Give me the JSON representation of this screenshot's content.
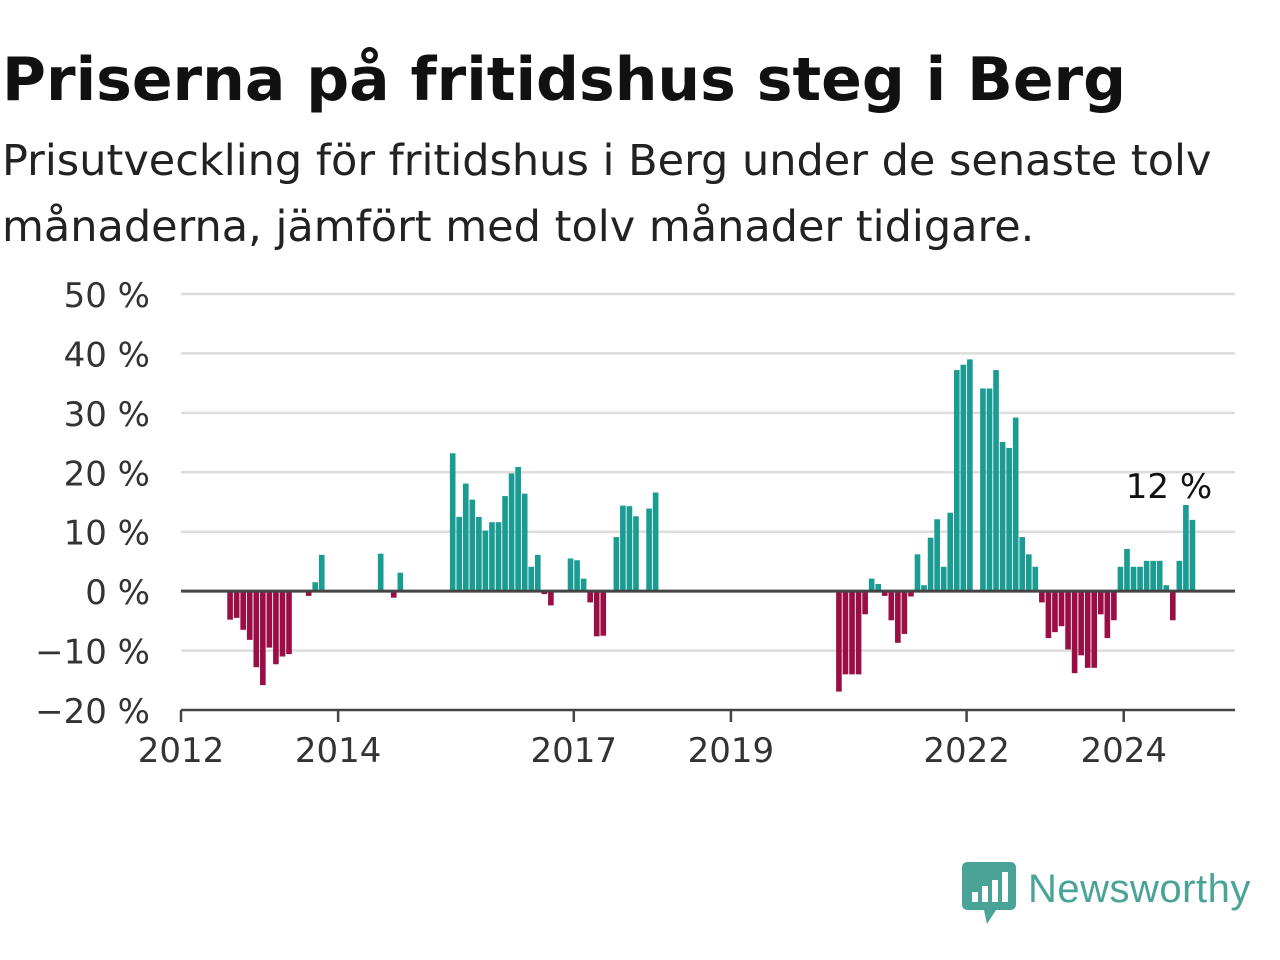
{
  "title": "Priserna på fritidshus steg i Berg",
  "subtitle": "Prisutveckling för fritidshus i Berg under de senaste tolv månaderna, jämfört med tolv månader tidigare.",
  "brand": {
    "name": "Newsworthy",
    "color": "#4aa397",
    "icon": "newsworthy-logo-icon"
  },
  "colors": {
    "positive": "#1a9c93",
    "negative": "#9b0e45",
    "grid": "#dddddd",
    "zero_line": "#444444",
    "axis": "#444444"
  },
  "chart_data": {
    "type": "bar",
    "title": "Priserna på fritidshus steg i Berg",
    "subtitle": "Prisutveckling för fritidshus i Berg under de senaste tolv månaderna, jämfört med tolv månader tidigare.",
    "xlabel": "",
    "ylabel": "",
    "x_unit": "month",
    "xlim": [
      "2012-01",
      "2025-06"
    ],
    "ylim": [
      -20,
      50
    ],
    "y_ticks": [
      50,
      40,
      30,
      20,
      10,
      0,
      -10,
      -20
    ],
    "y_tick_labels": [
      "50 %",
      "40 %",
      "30 %",
      "20 %",
      "10 %",
      "0 %",
      "−10 %",
      "−20 %"
    ],
    "x_ticks": [
      "2012",
      "2014",
      "2017",
      "2019",
      "2022",
      "2024"
    ],
    "grid": true,
    "legend": "none",
    "annotation": {
      "text": "12 %",
      "x": "2024-12",
      "y": 12
    },
    "series": [
      {
        "values": [
          [
            "2012-08",
            -4.8
          ],
          [
            "2012-09",
            -4.5
          ],
          [
            "2012-10",
            -6.5
          ],
          [
            "2012-11",
            -8.2
          ],
          [
            "2012-12",
            -12.8
          ],
          [
            "2013-01",
            -15.8
          ],
          [
            "2013-02",
            -9.5
          ],
          [
            "2013-03",
            -12.3
          ],
          [
            "2013-04",
            -11.0
          ],
          [
            "2013-05",
            -10.6
          ],
          [
            "2013-08",
            -0.8
          ],
          [
            "2013-09",
            1.5
          ],
          [
            "2013-10",
            6.1
          ],
          [
            "2014-07",
            6.3
          ],
          [
            "2014-09",
            -1.1
          ],
          [
            "2014-10",
            3.1
          ],
          [
            "2015-06",
            23.2
          ],
          [
            "2015-07",
            12.5
          ],
          [
            "2015-08",
            18.1
          ],
          [
            "2015-09",
            15.4
          ],
          [
            "2015-10",
            12.5
          ],
          [
            "2015-11",
            10.2
          ],
          [
            "2015-12",
            11.6
          ],
          [
            "2016-01",
            11.6
          ],
          [
            "2016-02",
            16.0
          ],
          [
            "2016-03",
            19.8
          ],
          [
            "2016-04",
            20.9
          ],
          [
            "2016-05",
            16.4
          ],
          [
            "2016-06",
            4.1
          ],
          [
            "2016-07",
            6.1
          ],
          [
            "2016-08",
            -0.5
          ],
          [
            "2016-09",
            -2.4
          ],
          [
            "2016-12",
            5.5
          ],
          [
            "2017-01",
            5.2
          ],
          [
            "2017-02",
            2.1
          ],
          [
            "2017-03",
            -1.9
          ],
          [
            "2017-04",
            -7.6
          ],
          [
            "2017-05",
            -7.5
          ],
          [
            "2017-07",
            9.1
          ],
          [
            "2017-08",
            14.4
          ],
          [
            "2017-09",
            14.3
          ],
          [
            "2017-10",
            12.6
          ],
          [
            "2017-12",
            13.9
          ],
          [
            "2018-01",
            16.6
          ],
          [
            "2020-05",
            -16.9
          ],
          [
            "2020-06",
            -14.0
          ],
          [
            "2020-07",
            -14.0
          ],
          [
            "2020-08",
            -14.0
          ],
          [
            "2020-09",
            -3.9
          ],
          [
            "2020-10",
            2.1
          ],
          [
            "2020-11",
            1.2
          ],
          [
            "2020-12",
            -0.8
          ],
          [
            "2021-01",
            -4.9
          ],
          [
            "2021-02",
            -8.7
          ],
          [
            "2021-03",
            -7.2
          ],
          [
            "2021-04",
            -0.9
          ],
          [
            "2021-05",
            6.2
          ],
          [
            "2021-06",
            1.0
          ],
          [
            "2021-07",
            9.0
          ],
          [
            "2021-08",
            12.1
          ],
          [
            "2021-09",
            4.1
          ],
          [
            "2021-10",
            13.2
          ],
          [
            "2021-11",
            37.2
          ],
          [
            "2021-12",
            38.1
          ],
          [
            "2022-01",
            39.0
          ],
          [
            "2022-03",
            34.1
          ],
          [
            "2022-04",
            34.1
          ],
          [
            "2022-05",
            37.2
          ],
          [
            "2022-06",
            25.1
          ],
          [
            "2022-07",
            24.1
          ],
          [
            "2022-08",
            29.2
          ],
          [
            "2022-09",
            9.1
          ],
          [
            "2022-10",
            6.2
          ],
          [
            "2022-11",
            4.1
          ],
          [
            "2022-12",
            -1.9
          ],
          [
            "2023-01",
            -7.9
          ],
          [
            "2023-02",
            -6.9
          ],
          [
            "2023-03",
            -5.9
          ],
          [
            "2023-04",
            -9.8
          ],
          [
            "2023-05",
            -13.8
          ],
          [
            "2023-06",
            -10.8
          ],
          [
            "2023-07",
            -12.9
          ],
          [
            "2023-08",
            -12.9
          ],
          [
            "2023-09",
            -3.9
          ],
          [
            "2023-10",
            -7.9
          ],
          [
            "2023-11",
            -4.9
          ],
          [
            "2023-12",
            4.1
          ],
          [
            "2024-01",
            7.1
          ],
          [
            "2024-02",
            4.1
          ],
          [
            "2024-03",
            4.1
          ],
          [
            "2024-04",
            5.1
          ],
          [
            "2024-05",
            5.1
          ],
          [
            "2024-06",
            5.1
          ],
          [
            "2024-07",
            1.0
          ],
          [
            "2024-08",
            -4.9
          ],
          [
            "2024-09",
            5.1
          ],
          [
            "2024-10",
            14.5
          ],
          [
            "2024-11",
            12.0
          ]
        ]
      }
    ]
  }
}
